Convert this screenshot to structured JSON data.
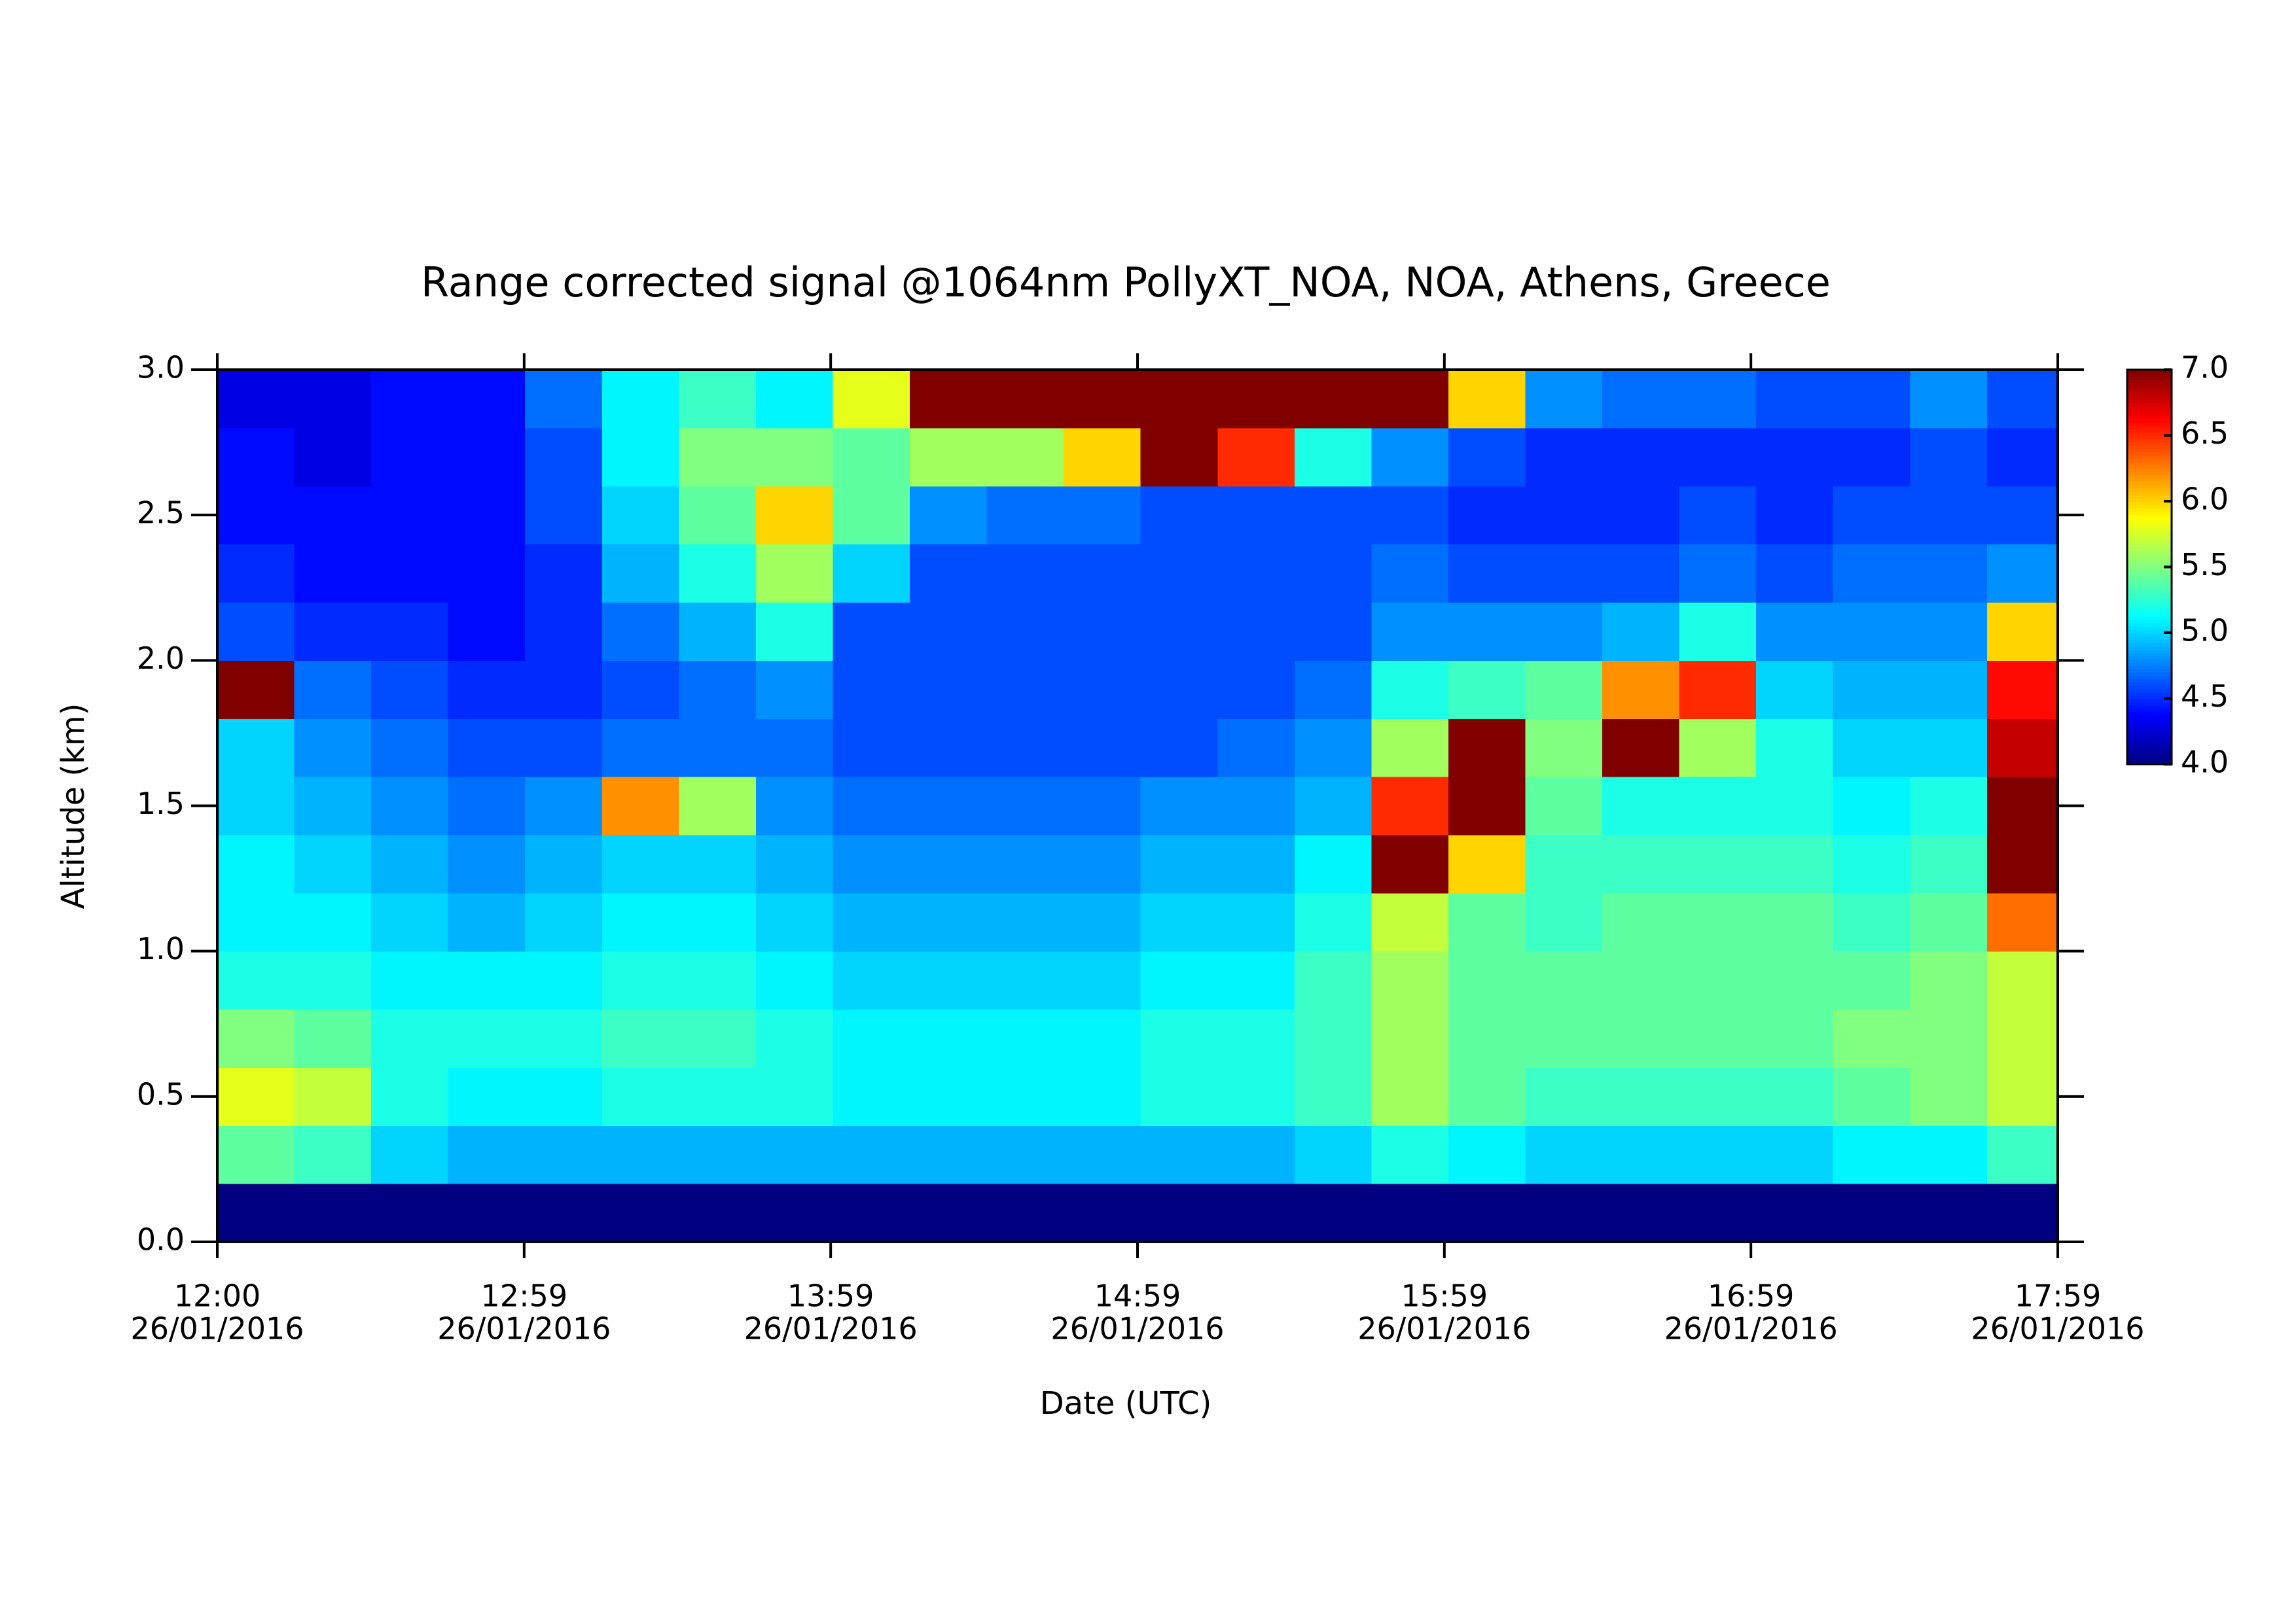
{
  "chart_data": {
    "type": "heatmap",
    "title": "Range corrected signal @1064nm  PollyXT_NOA, NOA, Athens, Greece",
    "x_label": "Date (UTC)",
    "y_label": "Altitude (km)",
    "xlim": [
      12,
      17.98
    ],
    "ylim": [
      0,
      3
    ],
    "xticks": [
      {
        "value": 12,
        "label": "12:00",
        "date": "26/01/2016"
      },
      {
        "value": 12.997,
        "label": "12:59",
        "date": "26/01/2016"
      },
      {
        "value": 13.993,
        "label": "13:59",
        "date": "26/01/2016"
      },
      {
        "value": 14.99,
        "label": "14:59",
        "date": "26/01/2016"
      },
      {
        "value": 15.987,
        "label": "15:59",
        "date": "26/01/2016"
      },
      {
        "value": 16.983,
        "label": "16:59",
        "date": "26/01/2016"
      },
      {
        "value": 17.98,
        "label": "17:59",
        "date": "26/01/2016"
      }
    ],
    "yticks": [
      {
        "value": 0,
        "label": "0.0"
      },
      0.5,
      {
        "value": 1,
        "label": "1.0"
      },
      1.5,
      {
        "value": 2,
        "label": "2.0"
      },
      2.5,
      {
        "value": 3,
        "label": "3.0"
      }
    ],
    "xbins": [
      12,
      12.25,
      12.5,
      12.75,
      13,
      13.25,
      13.5,
      13.75,
      14,
      14.25,
      14.5,
      14.75,
      15,
      15.25,
      15.5,
      15.75,
      16,
      16.25,
      16.5,
      16.75,
      17,
      17.25,
      17.5,
      17.75,
      17.98
    ],
    "ybins": [
      0,
      0.2,
      0.4,
      0.6,
      0.8,
      1.0,
      1.2,
      1.4,
      1.6,
      1.8,
      2.0,
      2.2,
      2.4,
      2.6,
      2.8,
      3.0
    ],
    "colorbar": {
      "colormap": "jet",
      "lim": [
        4,
        7
      ],
      "ticks": [
        {
          "value": 4,
          "label": "4.0"
        },
        4.5,
        {
          "value": 5,
          "label": "5.0"
        },
        5.5,
        {
          "value": 6,
          "label": "6.0"
        },
        6.5,
        {
          "value": 7,
          "label": "7.0"
        }
      ]
    },
    "z": [
      [
        4.0,
        4.0,
        4.0,
        4.0,
        4.0,
        4.0,
        4.0,
        4.0,
        4.0,
        4.0,
        4.0,
        4.0,
        4.0,
        4.0,
        4.0,
        4.0,
        4.0,
        4.0,
        4.0,
        4.0,
        4.0,
        4.0,
        4.0,
        4.0
      ],
      [
        5.4,
        5.3,
        5.0,
        4.9,
        4.9,
        4.9,
        4.9,
        4.9,
        4.9,
        4.9,
        4.9,
        4.9,
        4.9,
        4.9,
        5.0,
        5.2,
        5.1,
        5.0,
        5.0,
        5.0,
        5.0,
        5.1,
        5.1,
        5.3
      ],
      [
        5.8,
        5.7,
        5.2,
        5.1,
        5.1,
        5.2,
        5.2,
        5.2,
        5.1,
        5.1,
        5.1,
        5.1,
        5.2,
        5.2,
        5.3,
        5.6,
        5.4,
        5.3,
        5.3,
        5.3,
        5.3,
        5.4,
        5.5,
        5.7
      ],
      [
        5.5,
        5.4,
        5.2,
        5.2,
        5.2,
        5.3,
        5.3,
        5.2,
        5.1,
        5.1,
        5.1,
        5.1,
        5.2,
        5.2,
        5.3,
        5.6,
        5.4,
        5.4,
        5.4,
        5.4,
        5.4,
        5.5,
        5.5,
        5.7
      ],
      [
        5.2,
        5.2,
        5.1,
        5.1,
        5.1,
        5.2,
        5.2,
        5.1,
        5.0,
        5.0,
        5.0,
        5.0,
        5.1,
        5.1,
        5.3,
        5.6,
        5.4,
        5.4,
        5.4,
        5.4,
        5.4,
        5.4,
        5.5,
        5.7
      ],
      [
        5.1,
        5.1,
        5.0,
        4.9,
        5.0,
        5.1,
        5.1,
        5.0,
        4.9,
        4.9,
        4.9,
        4.9,
        5.0,
        5.0,
        5.2,
        5.7,
        5.4,
        5.3,
        5.4,
        5.4,
        5.4,
        5.3,
        5.4,
        6.3
      ],
      [
        5.1,
        5.0,
        4.9,
        4.8,
        4.9,
        5.0,
        5.0,
        4.9,
        4.8,
        4.8,
        4.8,
        4.8,
        4.9,
        4.9,
        5.1,
        7.0,
        6.0,
        5.3,
        5.3,
        5.3,
        5.3,
        5.2,
        5.3,
        7.0
      ],
      [
        5.0,
        4.9,
        4.8,
        4.7,
        4.8,
        6.2,
        5.6,
        4.8,
        4.7,
        4.7,
        4.7,
        4.7,
        4.8,
        4.8,
        4.9,
        6.5,
        7.0,
        5.4,
        5.2,
        5.2,
        5.2,
        5.1,
        5.2,
        7.0
      ],
      [
        5.0,
        4.8,
        4.7,
        4.6,
        4.6,
        4.7,
        4.7,
        4.7,
        4.6,
        4.6,
        4.6,
        4.6,
        4.6,
        4.7,
        4.8,
        5.6,
        7.0,
        5.5,
        7.0,
        5.6,
        5.2,
        5.0,
        5.0,
        6.8
      ],
      [
        7.0,
        4.7,
        4.6,
        4.5,
        4.5,
        4.6,
        4.7,
        4.8,
        4.6,
        4.6,
        4.6,
        4.6,
        4.6,
        4.6,
        4.7,
        5.2,
        5.3,
        5.4,
        6.2,
        6.5,
        5.0,
        4.9,
        4.9,
        6.6
      ],
      [
        4.6,
        4.5,
        4.5,
        4.4,
        4.5,
        4.7,
        4.9,
        5.2,
        4.6,
        4.6,
        4.6,
        4.6,
        4.6,
        4.6,
        4.6,
        4.8,
        4.8,
        4.8,
        4.9,
        5.2,
        4.8,
        4.8,
        4.8,
        6.0
      ],
      [
        4.5,
        4.4,
        4.4,
        4.4,
        4.5,
        4.9,
        5.2,
        5.6,
        5.0,
        4.6,
        4.6,
        4.6,
        4.6,
        4.6,
        4.6,
        4.7,
        4.6,
        4.6,
        4.6,
        4.7,
        4.6,
        4.7,
        4.7,
        4.8
      ],
      [
        4.4,
        4.4,
        4.4,
        4.4,
        4.6,
        5.0,
        5.4,
        6.0,
        5.4,
        4.8,
        4.7,
        4.7,
        4.6,
        4.6,
        4.6,
        4.6,
        4.5,
        4.5,
        4.5,
        4.6,
        4.5,
        4.6,
        4.6,
        4.6
      ],
      [
        4.4,
        4.3,
        4.4,
        4.4,
        4.6,
        5.1,
        5.5,
        5.5,
        5.4,
        5.6,
        5.6,
        6.0,
        7.0,
        6.5,
        5.2,
        4.8,
        4.6,
        4.5,
        4.5,
        4.5,
        4.5,
        4.5,
        4.6,
        4.5
      ],
      [
        4.3,
        4.3,
        4.4,
        4.4,
        4.7,
        5.1,
        5.3,
        5.1,
        5.8,
        7.0,
        7.0,
        7.0,
        7.0,
        7.0,
        7.0,
        7.0,
        6.0,
        4.8,
        4.7,
        4.7,
        4.6,
        4.6,
        4.8,
        4.6
      ]
    ]
  }
}
